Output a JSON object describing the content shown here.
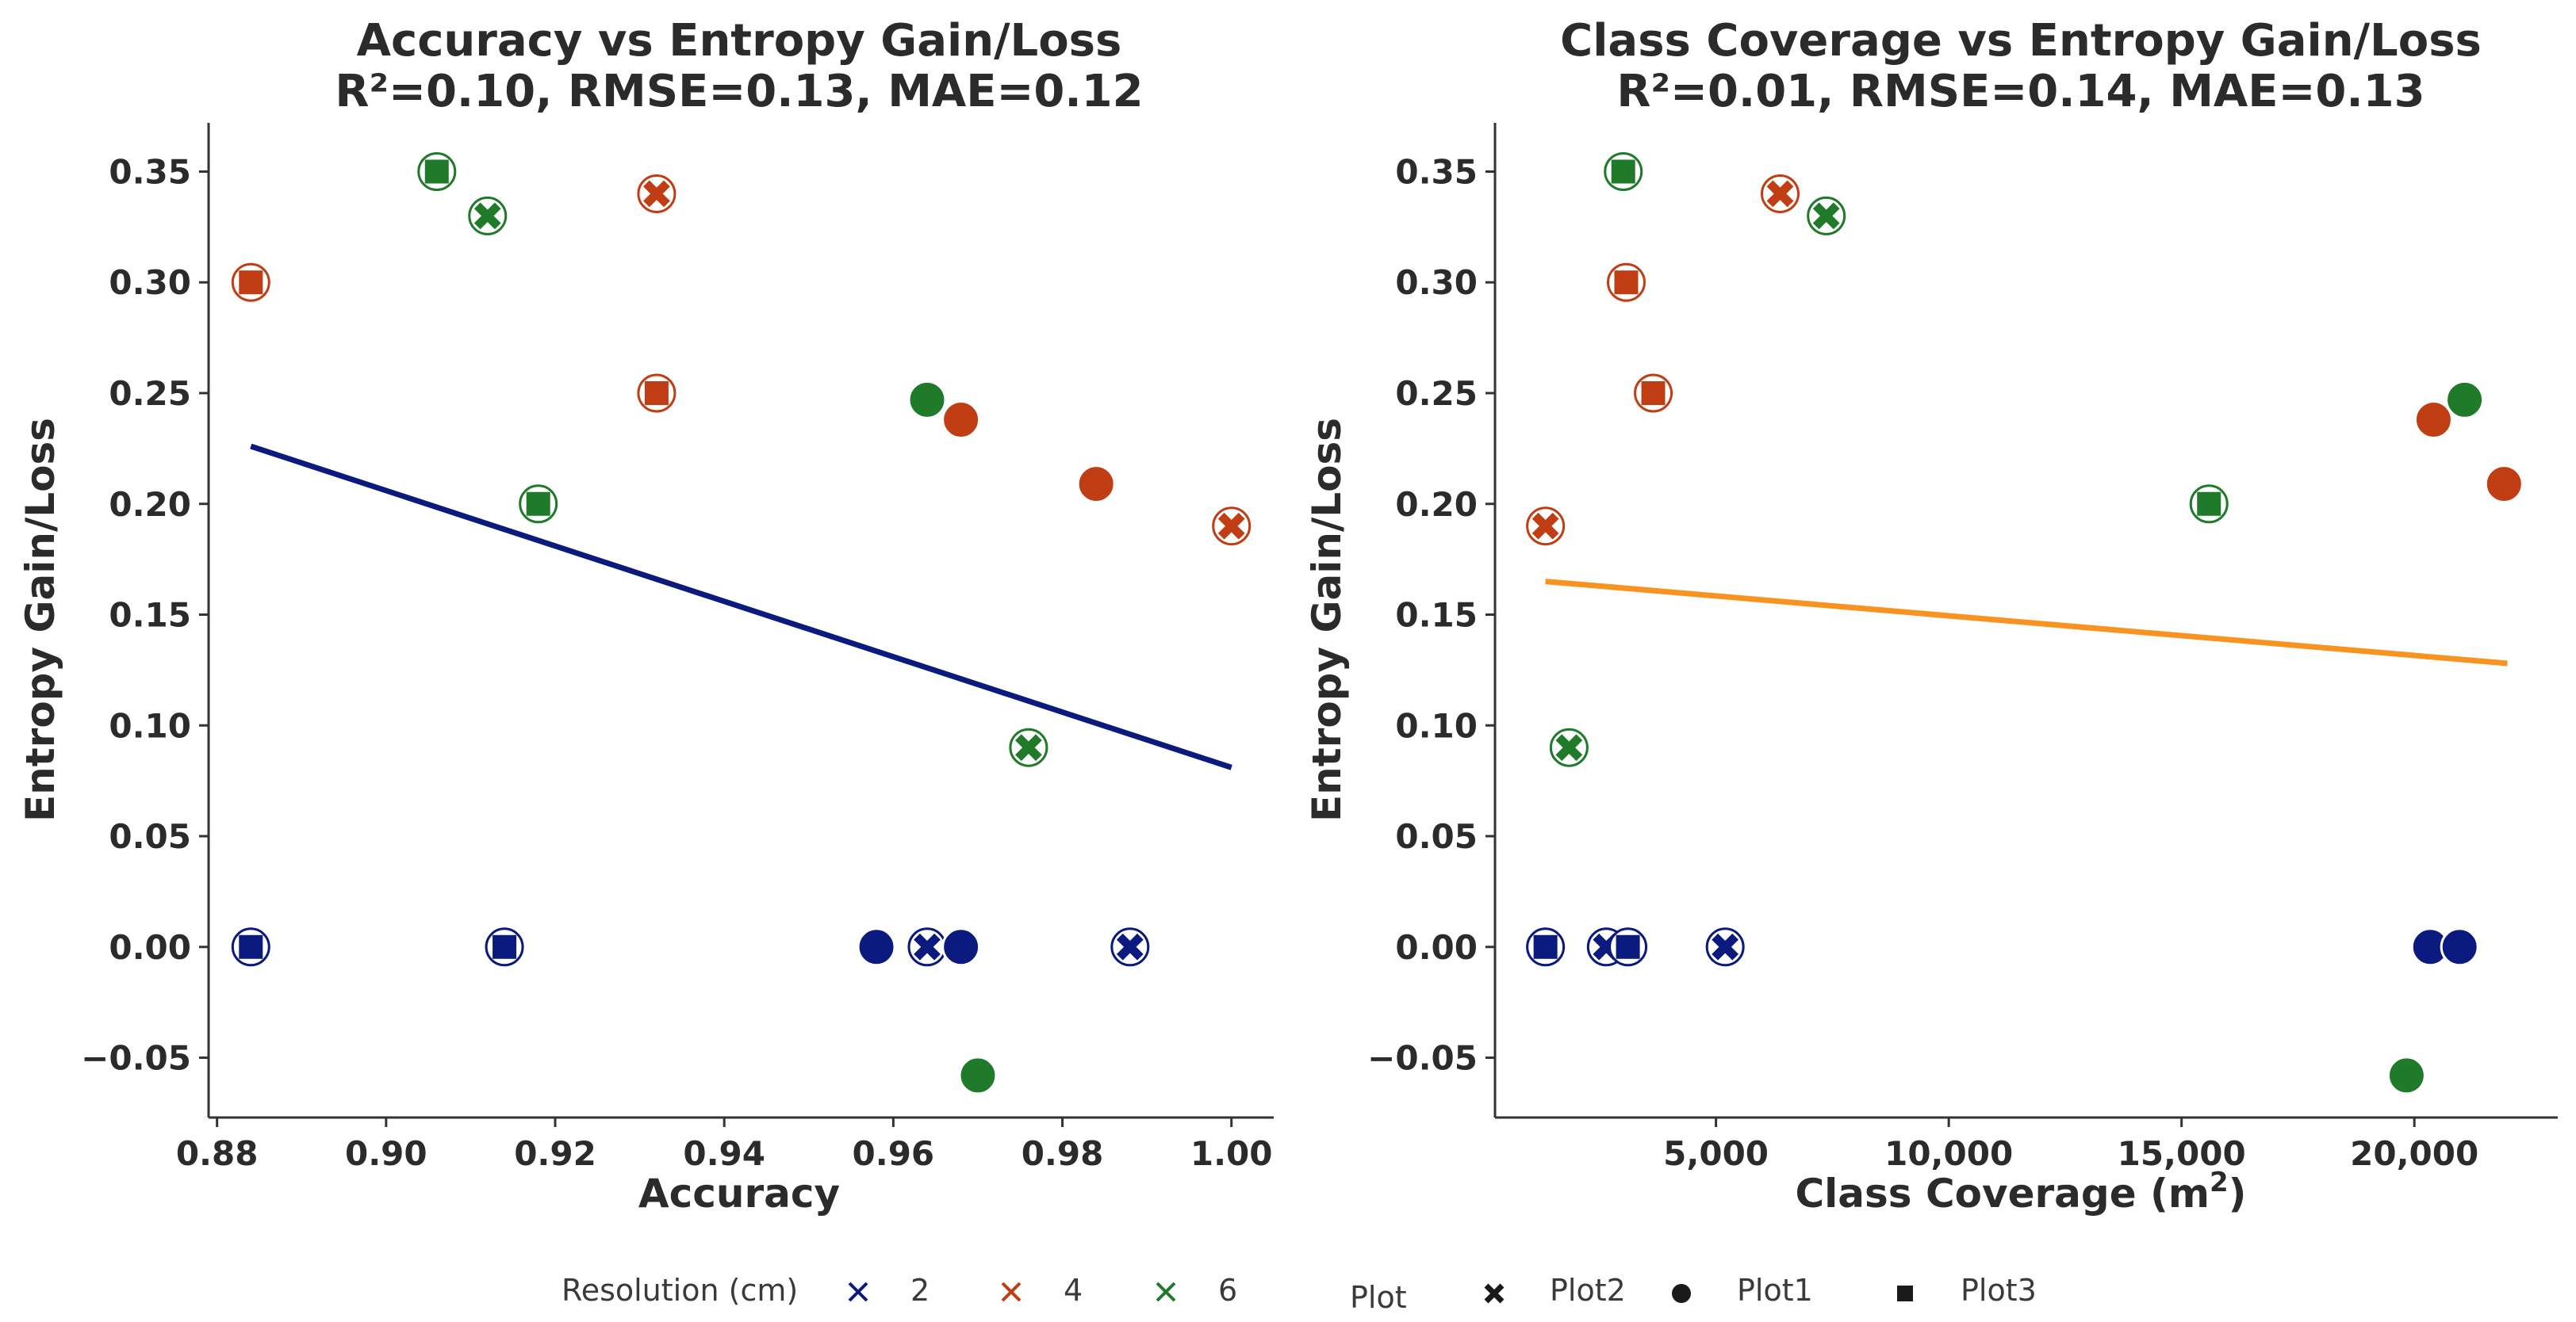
{
  "chart_data": [
    {
      "type": "scatter",
      "title": "Accuracy vs Entropy Gain/Loss",
      "subtitle": "R²=0.10, RMSE=0.13, MAE=0.12",
      "xlabel": "Accuracy",
      "ylabel": "Entropy Gain/Loss",
      "xlim": [
        0.879,
        1.005
      ],
      "ylim": [
        -0.077,
        0.372
      ],
      "xticks": [
        0.88,
        0.9,
        0.92,
        0.94,
        0.96,
        0.98,
        1.0
      ],
      "xtick_labels": [
        "0.88",
        "0.90",
        "0.92",
        "0.94",
        "0.96",
        "0.98",
        "1.00"
      ],
      "yticks": [
        -0.05,
        0.0,
        0.05,
        0.1,
        0.15,
        0.2,
        0.25,
        0.3,
        0.35
      ],
      "ytick_labels": [
        "−0.05",
        "0.00",
        "0.05",
        "0.10",
        "0.15",
        "0.20",
        "0.25",
        "0.30",
        "0.35"
      ],
      "regression": {
        "x": [
          0.884,
          1.0
        ],
        "y": [
          0.226,
          0.081
        ],
        "color": "#0b1a7e"
      },
      "points": [
        {
          "x": 0.884,
          "y": 0.3,
          "res": 4,
          "plot": "Plot3"
        },
        {
          "x": 0.906,
          "y": 0.35,
          "res": 6,
          "plot": "Plot3"
        },
        {
          "x": 0.912,
          "y": 0.33,
          "res": 6,
          "plot": "Plot2"
        },
        {
          "x": 0.932,
          "y": 0.34,
          "res": 4,
          "plot": "Plot2"
        },
        {
          "x": 0.932,
          "y": 0.25,
          "res": 4,
          "plot": "Plot3"
        },
        {
          "x": 0.918,
          "y": 0.2,
          "res": 6,
          "plot": "Plot3"
        },
        {
          "x": 0.964,
          "y": 0.247,
          "res": 6,
          "plot": "Plot1"
        },
        {
          "x": 0.968,
          "y": 0.238,
          "res": 4,
          "plot": "Plot1"
        },
        {
          "x": 0.984,
          "y": 0.209,
          "res": 4,
          "plot": "Plot1"
        },
        {
          "x": 1.0,
          "y": 0.19,
          "res": 4,
          "plot": "Plot2"
        },
        {
          "x": 0.976,
          "y": 0.09,
          "res": 6,
          "plot": "Plot2"
        },
        {
          "x": 0.884,
          "y": 0.0,
          "res": 2,
          "plot": "Plot3"
        },
        {
          "x": 0.914,
          "y": 0.0,
          "res": 2,
          "plot": "Plot3"
        },
        {
          "x": 0.958,
          "y": 0.0,
          "res": 2,
          "plot": "Plot1"
        },
        {
          "x": 0.964,
          "y": 0.0,
          "res": 2,
          "plot": "Plot2"
        },
        {
          "x": 0.968,
          "y": 0.0,
          "res": 2,
          "plot": "Plot1"
        },
        {
          "x": 0.988,
          "y": 0.0,
          "res": 2,
          "plot": "Plot2"
        },
        {
          "x": 0.97,
          "y": -0.058,
          "res": 6,
          "plot": "Plot1"
        }
      ]
    },
    {
      "type": "scatter",
      "title": "Class Coverage vs Entropy Gain/Loss",
      "subtitle": "R²=0.01, RMSE=0.14, MAE=0.13",
      "xlabel": "Class Coverage (m",
      "xlabel_sup": "2",
      "xlabel_end": ")",
      "ylabel": "Entropy Gain/Loss",
      "xlim": [
        254,
        23080
      ],
      "ylim": [
        -0.077,
        0.372
      ],
      "xticks": [
        5000,
        10000,
        15000,
        20000
      ],
      "xtick_labels": [
        "5,000",
        "10,000",
        "15,000",
        "20,000"
      ],
      "yticks": [
        -0.05,
        0.0,
        0.05,
        0.1,
        0.15,
        0.2,
        0.25,
        0.3,
        0.35
      ],
      "ytick_labels": [
        "−0.05",
        "0.00",
        "0.05",
        "0.10",
        "0.15",
        "0.20",
        "0.25",
        "0.30",
        "0.35"
      ],
      "regression": {
        "x": [
          1338,
          21998
        ],
        "y": [
          0.165,
          0.128
        ],
        "color": "#f7931e"
      },
      "points": [
        {
          "x": 3009,
          "y": 0.35,
          "res": 6,
          "plot": "Plot3"
        },
        {
          "x": 3073,
          "y": 0.3,
          "res": 4,
          "plot": "Plot3"
        },
        {
          "x": 6378,
          "y": 0.34,
          "res": 4,
          "plot": "Plot2"
        },
        {
          "x": 7369,
          "y": 0.33,
          "res": 6,
          "plot": "Plot2"
        },
        {
          "x": 3653,
          "y": 0.25,
          "res": 4,
          "plot": "Plot3"
        },
        {
          "x": 1338,
          "y": 0.19,
          "res": 4,
          "plot": "Plot2"
        },
        {
          "x": 15589,
          "y": 0.2,
          "res": 6,
          "plot": "Plot3"
        },
        {
          "x": 20413,
          "y": 0.238,
          "res": 4,
          "plot": "Plot1"
        },
        {
          "x": 21080,
          "y": 0.247,
          "res": 6,
          "plot": "Plot1"
        },
        {
          "x": 21926,
          "y": 0.209,
          "res": 4,
          "plot": "Plot1"
        },
        {
          "x": 1845,
          "y": 0.09,
          "res": 6,
          "plot": "Plot2"
        },
        {
          "x": 1338,
          "y": 0.0,
          "res": 2,
          "plot": "Plot3"
        },
        {
          "x": 2644,
          "y": 0.0,
          "res": 2,
          "plot": "Plot2"
        },
        {
          "x": 3109,
          "y": 0.0,
          "res": 2,
          "plot": "Plot3"
        },
        {
          "x": 5197,
          "y": 0.0,
          "res": 2,
          "plot": "Plot2"
        },
        {
          "x": 20341,
          "y": 0.0,
          "res": 2,
          "plot": "Plot1"
        },
        {
          "x": 20971,
          "y": 0.0,
          "res": 2,
          "plot": "Plot1"
        },
        {
          "x": 19833,
          "y": -0.058,
          "res": 6,
          "plot": "Plot1"
        }
      ]
    }
  ],
  "legend": {
    "resolution_title": "Resolution (cm)",
    "resolution_items": [
      {
        "label": "2",
        "color": "#0b1a7e"
      },
      {
        "label": "4",
        "color": "#c13e15"
      },
      {
        "label": "6",
        "color": "#1f7a2a"
      }
    ],
    "plot_title": "Plot",
    "plot_items": [
      {
        "label": "Plot2",
        "shape": "x"
      },
      {
        "label": "Plot1",
        "shape": "circle"
      },
      {
        "label": "Plot3",
        "shape": "square"
      }
    ]
  },
  "colors": {
    "res2": "#0b1a7e",
    "res4": "#c13e15",
    "res6": "#1f7a2a",
    "axis": "#333333",
    "text": "#2b2b2b"
  }
}
